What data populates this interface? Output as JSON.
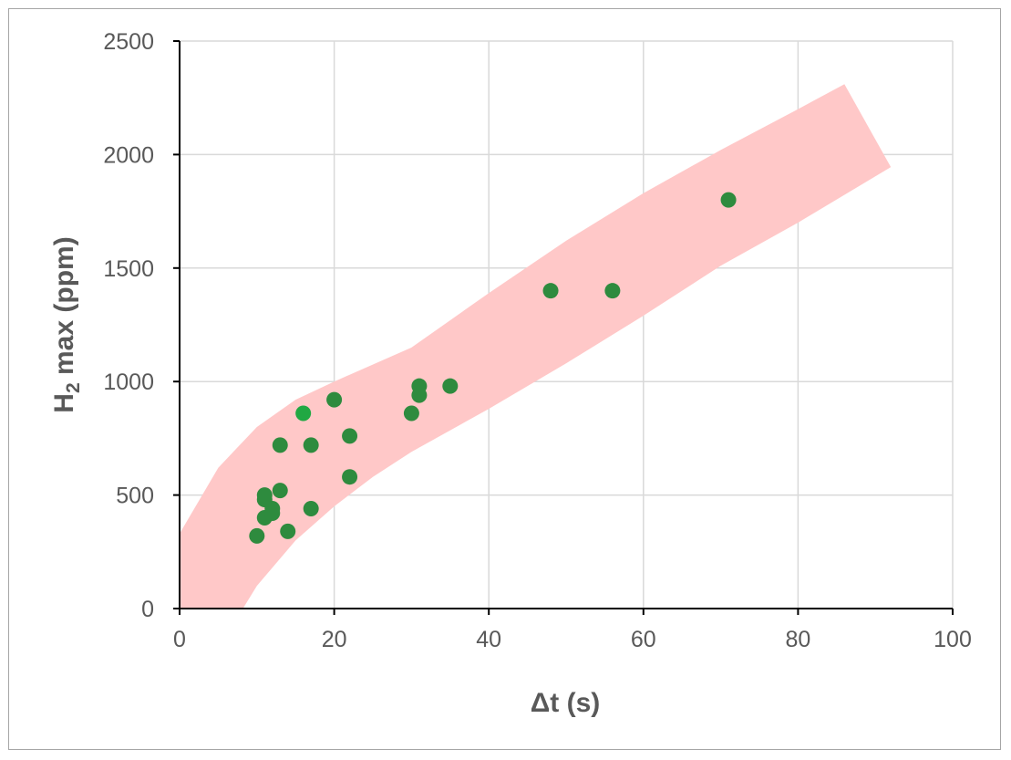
{
  "chart_data": {
    "type": "scatter",
    "xlabel": "Δt (s)",
    "ylabel": {
      "main": "H",
      "sub": "2",
      "rest": " max (ppm)"
    },
    "xlim": [
      0,
      100
    ],
    "ylim": [
      0,
      2500
    ],
    "x_ticks": [
      "0",
      "20",
      "40",
      "60",
      "80",
      "100"
    ],
    "y_ticks": [
      "0",
      "500",
      "1000",
      "1500",
      "2000",
      "2500"
    ],
    "grid": true,
    "point_color": "#2e8b3e",
    "highlight_point_color": "#21a843",
    "band_color": "#ffc8c8",
    "band": {
      "upper": [
        [
          0,
          330
        ],
        [
          5,
          620
        ],
        [
          10,
          800
        ],
        [
          15,
          920
        ],
        [
          20,
          1000
        ],
        [
          30,
          1150
        ],
        [
          40,
          1390
        ],
        [
          50,
          1620
        ],
        [
          60,
          1830
        ],
        [
          70,
          2020
        ],
        [
          80,
          2200
        ],
        [
          86,
          2310
        ]
      ],
      "end_cap": [
        [
          86,
          2310
        ],
        [
          92,
          1945
        ]
      ],
      "lower": [
        [
          92,
          1945
        ],
        [
          80,
          1700
        ],
        [
          70,
          1510
        ],
        [
          60,
          1290
        ],
        [
          50,
          1080
        ],
        [
          40,
          880
        ],
        [
          30,
          690
        ],
        [
          25,
          580
        ],
        [
          20,
          450
        ],
        [
          15,
          300
        ],
        [
          10,
          100
        ],
        [
          8.2,
          0
        ],
        [
          0,
          0
        ]
      ]
    },
    "points": [
      {
        "x": 10,
        "y": 320
      },
      {
        "x": 11,
        "y": 480
      },
      {
        "x": 11,
        "y": 500
      },
      {
        "x": 11,
        "y": 400
      },
      {
        "x": 12,
        "y": 440
      },
      {
        "x": 12,
        "y": 420
      },
      {
        "x": 13,
        "y": 720
      },
      {
        "x": 13,
        "y": 520
      },
      {
        "x": 14,
        "y": 340
      },
      {
        "x": 16,
        "y": 860,
        "highlight": true
      },
      {
        "x": 17,
        "y": 720
      },
      {
        "x": 17,
        "y": 440
      },
      {
        "x": 20,
        "y": 920
      },
      {
        "x": 22,
        "y": 760
      },
      {
        "x": 22,
        "y": 580
      },
      {
        "x": 30,
        "y": 860
      },
      {
        "x": 31,
        "y": 980
      },
      {
        "x": 31,
        "y": 940
      },
      {
        "x": 35,
        "y": 980
      },
      {
        "x": 48,
        "y": 1400
      },
      {
        "x": 56,
        "y": 1400
      },
      {
        "x": 71,
        "y": 1800
      }
    ]
  }
}
